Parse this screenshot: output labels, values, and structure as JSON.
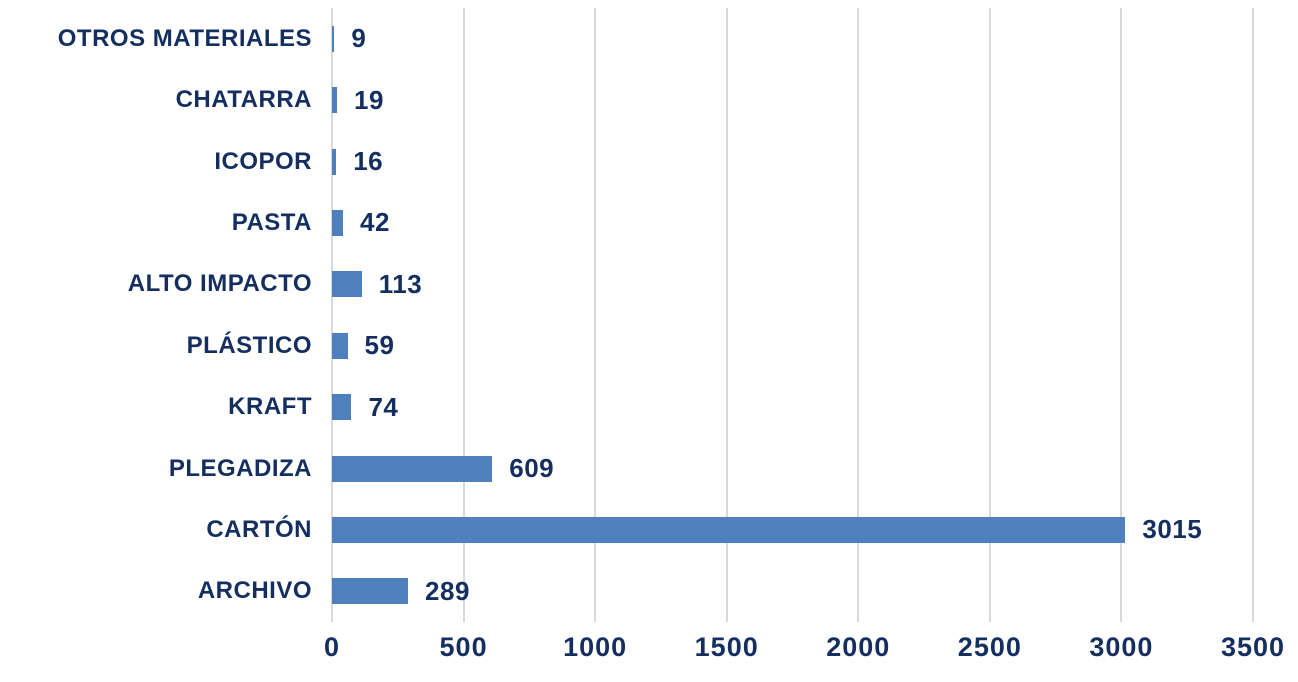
{
  "chart_data": {
    "type": "bar",
    "orientation": "horizontal",
    "title": "",
    "xlabel": "",
    "ylabel": "",
    "categories": [
      "OTROS MATERIALES",
      "CHATARRA",
      "ICOPOR",
      "PASTA",
      "ALTO IMPACTO",
      "PLÁSTICO",
      "KRAFT",
      "PLEGADIZA",
      "CARTÓN",
      "ARCHIVO"
    ],
    "values": [
      9,
      19,
      16,
      42,
      113,
      59,
      74,
      609,
      3015,
      289
    ],
    "data_labels": [
      "9",
      "19",
      "16",
      "42",
      "113",
      "59",
      "74",
      "609",
      "3015",
      "289"
    ],
    "xlim": [
      0,
      3500
    ],
    "xticks": [
      0,
      500,
      1000,
      1500,
      2000,
      2500,
      3000,
      3500
    ],
    "xtick_labels": [
      "0",
      "500",
      "1000",
      "1500",
      "2000",
      "2500",
      "3000",
      "3500"
    ],
    "grid": "vertical",
    "legend": "none",
    "colors": {
      "bar": "#4E80BD",
      "text": "#142F5F",
      "gridline": "#D9D9D9",
      "background": "#FFFFFF"
    }
  }
}
